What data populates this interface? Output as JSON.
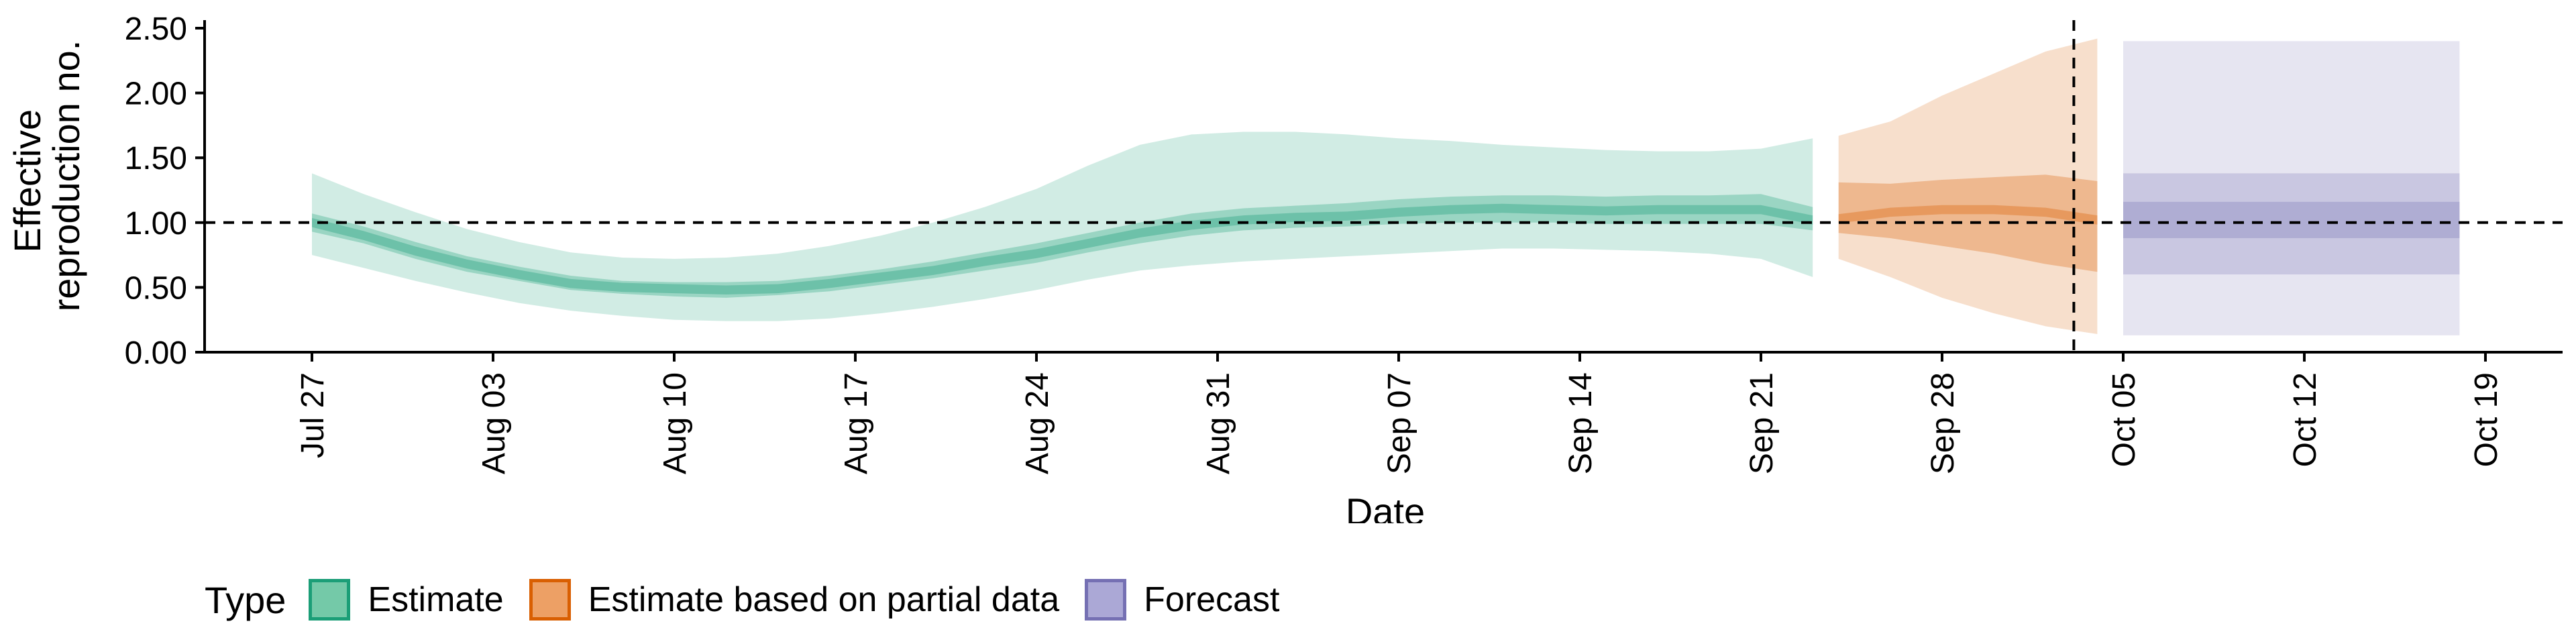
{
  "chart_data": {
    "type": "area",
    "xlabel": "Date",
    "ylabel": "Effective reproduction no.",
    "ylabel_lines": [
      "Effective",
      "reproduction no."
    ],
    "ylim": [
      0,
      2.5
    ],
    "yticks": [
      "0.00",
      "0.50",
      "1.00",
      "1.50",
      "2.00",
      "2.50"
    ],
    "x_start_date": "Jul 24",
    "xtick_labels": [
      "Jul 27",
      "Aug 03",
      "Aug 10",
      "Aug 17",
      "Aug 24",
      "Aug 31",
      "Sep 07",
      "Sep 14",
      "Sep 21",
      "Sep 28",
      "Oct 05",
      "Oct 12",
      "Oct 19"
    ],
    "reference_line_y": 1.0,
    "nowcast_vline_date": "Oct 04",
    "series": [
      {
        "name": "Estimate",
        "color": "#1b9e77",
        "x": [
          "Jul 27",
          "Jul 29",
          "Jul 31",
          "Aug 02",
          "Aug 04",
          "Aug 06",
          "Aug 08",
          "Aug 10",
          "Aug 12",
          "Aug 14",
          "Aug 16",
          "Aug 18",
          "Aug 20",
          "Aug 22",
          "Aug 24",
          "Aug 26",
          "Aug 28",
          "Aug 30",
          "Sep 01",
          "Sep 03",
          "Sep 05",
          "Sep 07",
          "Sep 09",
          "Sep 11",
          "Sep 13",
          "Sep 15",
          "Sep 17",
          "Sep 19",
          "Sep 21",
          "Sep 23"
        ],
        "median": [
          1.0,
          0.9,
          0.78,
          0.68,
          0.6,
          0.53,
          0.5,
          0.49,
          0.48,
          0.49,
          0.53,
          0.58,
          0.63,
          0.7,
          0.76,
          0.84,
          0.92,
          0.98,
          1.02,
          1.04,
          1.05,
          1.08,
          1.1,
          1.11,
          1.1,
          1.09,
          1.1,
          1.1,
          1.1,
          1.02
        ],
        "lower_50": [
          0.93,
          0.84,
          0.72,
          0.62,
          0.55,
          0.48,
          0.45,
          0.43,
          0.42,
          0.44,
          0.47,
          0.52,
          0.57,
          0.63,
          0.69,
          0.77,
          0.84,
          0.9,
          0.94,
          0.96,
          0.97,
          0.99,
          1.0,
          1.0,
          1.0,
          0.99,
          0.99,
          0.99,
          0.99,
          0.94
        ],
        "upper_50": [
          1.07,
          0.97,
          0.85,
          0.74,
          0.66,
          0.59,
          0.55,
          0.54,
          0.54,
          0.55,
          0.59,
          0.64,
          0.7,
          0.77,
          0.84,
          0.92,
          1.0,
          1.07,
          1.11,
          1.13,
          1.15,
          1.18,
          1.2,
          1.21,
          1.21,
          1.2,
          1.21,
          1.21,
          1.22,
          1.12
        ],
        "lower_90": [
          0.75,
          0.65,
          0.55,
          0.46,
          0.38,
          0.32,
          0.28,
          0.25,
          0.24,
          0.24,
          0.26,
          0.3,
          0.35,
          0.41,
          0.48,
          0.56,
          0.63,
          0.67,
          0.7,
          0.72,
          0.74,
          0.76,
          0.78,
          0.8,
          0.8,
          0.79,
          0.78,
          0.76,
          0.72,
          0.58
        ],
        "upper_90": [
          1.38,
          1.22,
          1.08,
          0.95,
          0.85,
          0.77,
          0.73,
          0.72,
          0.73,
          0.76,
          0.82,
          0.9,
          1.0,
          1.12,
          1.26,
          1.44,
          1.6,
          1.68,
          1.7,
          1.7,
          1.68,
          1.65,
          1.63,
          1.6,
          1.58,
          1.56,
          1.55,
          1.55,
          1.57,
          1.65
        ]
      },
      {
        "name": "Estimate based on partial data",
        "color": "#d95f02",
        "x": [
          "Sep 24",
          "Sep 26",
          "Sep 28",
          "Sep 30",
          "Oct 02",
          "Oct 04"
        ],
        "median": [
          1.03,
          1.08,
          1.1,
          1.1,
          1.08,
          1.02
        ],
        "lower_50": [
          0.92,
          0.88,
          0.82,
          0.76,
          0.68,
          0.62
        ],
        "upper_50": [
          1.31,
          1.3,
          1.33,
          1.35,
          1.37,
          1.32
        ],
        "lower_90": [
          0.72,
          0.58,
          0.42,
          0.3,
          0.2,
          0.14
        ],
        "upper_90": [
          1.67,
          1.78,
          1.98,
          2.15,
          2.32,
          2.42
        ]
      },
      {
        "name": "Forecast",
        "color": "#7570b3",
        "x": [
          "Oct 05",
          "Oct 18"
        ],
        "median": [
          1.0,
          1.0
        ],
        "lower_50": [
          0.88,
          0.88
        ],
        "upper_50": [
          1.16,
          1.16
        ],
        "lower_30": [
          0.88,
          0.88
        ],
        "lower_70": [
          0.6,
          0.6
        ],
        "upper_70": [
          1.38,
          1.38
        ],
        "lower_90": [
          0.13,
          0.13
        ],
        "upper_90": [
          2.4,
          2.4
        ]
      }
    ]
  },
  "legend": {
    "title": "Type",
    "items": [
      {
        "label": "Estimate",
        "fill": "#74c9a8",
        "border": "#1b9e77"
      },
      {
        "label": "Estimate based on partial data",
        "fill": "#eda065",
        "border": "#d95f02"
      },
      {
        "label": "Forecast",
        "fill": "#aba8d6",
        "border": "#7570b3"
      }
    ]
  }
}
